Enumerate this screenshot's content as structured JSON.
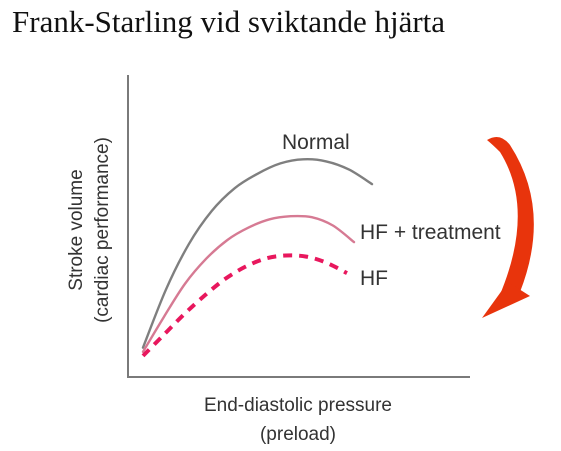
{
  "slide": {
    "title": "Frank-Starling vid sviktande hjärta"
  },
  "chart_data": {
    "type": "line",
    "title": "",
    "xlabel": [
      "End-diastolic pressure",
      "(preload)"
    ],
    "ylabel": [
      "Stroke volume",
      "(cardiac performance)"
    ],
    "x": [
      0,
      1,
      2,
      3,
      4,
      5,
      6,
      7,
      8,
      9,
      10
    ],
    "series": [
      {
        "name": "Normal",
        "values": [
          0.5,
          3.3,
          5.5,
          7.1,
          8.2,
          8.9,
          9.4,
          9.6,
          9.5,
          9.1,
          8.4
        ],
        "color": "#7f7f7f",
        "style": "solid"
      },
      {
        "name": "HF + treatment",
        "values": [
          0.3,
          2.0,
          3.6,
          4.8,
          5.7,
          6.3,
          6.7,
          6.85,
          6.8,
          6.4,
          5.6
        ],
        "color": "#d67a93",
        "style": "solid"
      },
      {
        "name": "HF",
        "values": [
          0.1,
          1.1,
          2.1,
          3.0,
          3.8,
          4.4,
          4.8,
          4.95,
          4.9,
          4.6,
          4.1
        ],
        "color": "#e8175d",
        "style": "dashed"
      }
    ],
    "xlim": [
      0,
      10
    ],
    "ylim": [
      0,
      11
    ],
    "grid": false,
    "annotation": {
      "type": "curved-arrow",
      "direction": "downward",
      "color": "#e8340c"
    }
  }
}
